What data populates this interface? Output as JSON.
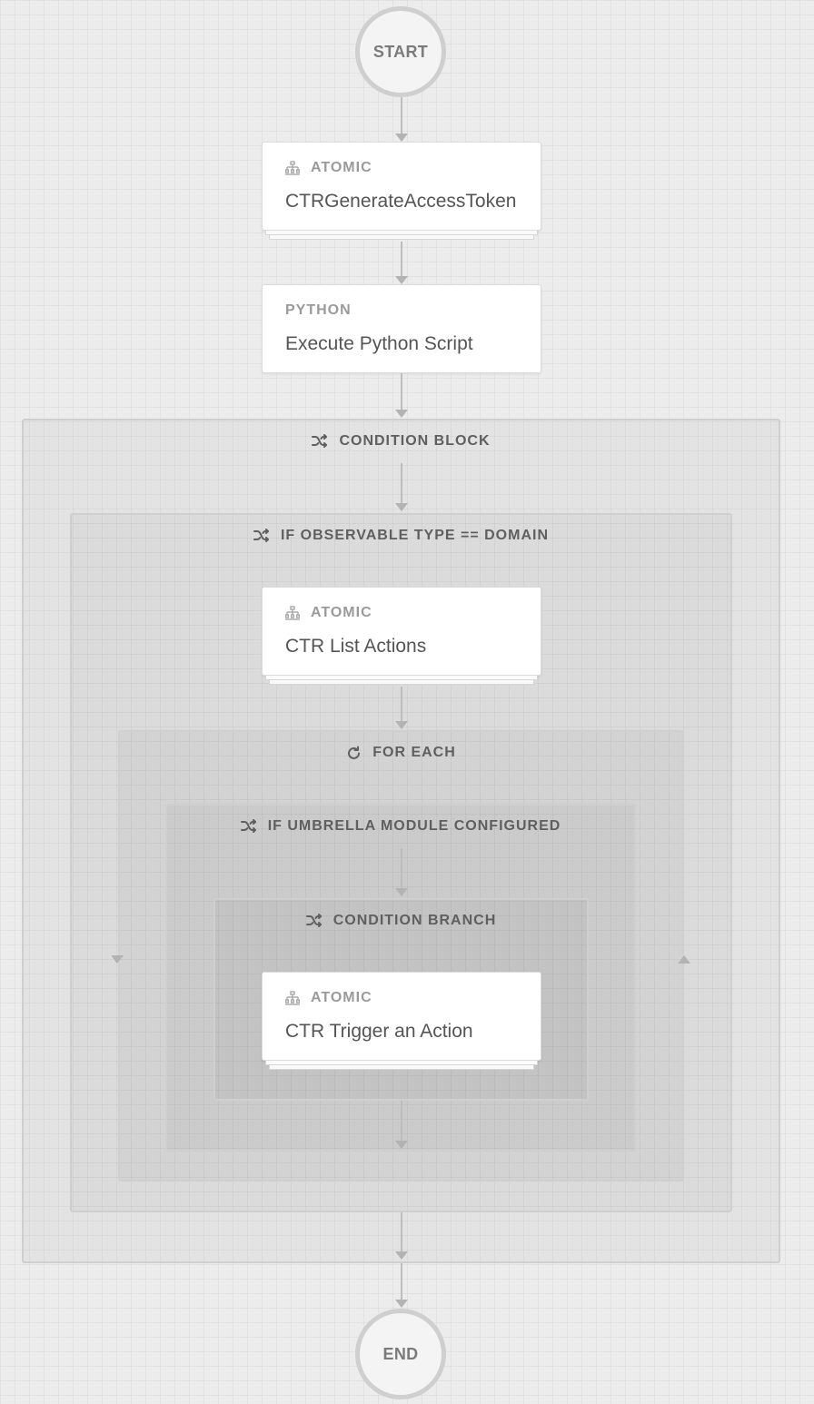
{
  "start": {
    "label": "START"
  },
  "end": {
    "label": "END"
  },
  "colors": {
    "connector": "#bdbdbd",
    "card_bg": "#ffffff",
    "block_border": "#cfcfcf"
  },
  "steps": {
    "step1": {
      "type": "ATOMIC",
      "title": "CTRGenerateAccessToken",
      "icon": "hierarchy-icon"
    },
    "step2": {
      "type": "PYTHON",
      "title": "Execute Python Script"
    },
    "step3": {
      "type": "ATOMIC",
      "title": "CTR List Actions",
      "icon": "hierarchy-icon"
    },
    "step4": {
      "type": "ATOMIC",
      "title": "CTR Trigger an Action",
      "icon": "hierarchy-icon"
    }
  },
  "blocks": {
    "condition_block": {
      "label": "CONDITION BLOCK",
      "icon": "shuffle-icon"
    },
    "if_observable": {
      "label": "IF OBSERVABLE TYPE == DOMAIN",
      "icon": "shuffle-icon"
    },
    "for_each": {
      "label": "FOR EACH",
      "icon": "refresh-icon"
    },
    "if_umbrella": {
      "label": "IF UMBRELLA MODULE CONFIGURED",
      "icon": "shuffle-icon"
    },
    "condition_branch": {
      "label": "CONDITION BRANCH",
      "icon": "shuffle-icon"
    }
  }
}
